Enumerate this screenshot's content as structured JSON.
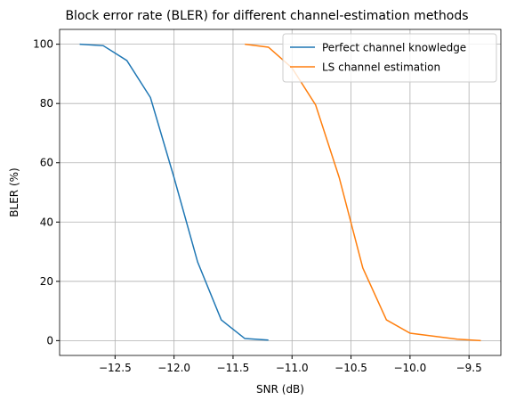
{
  "chart_data": {
    "type": "line",
    "title": "Block error rate (BLER) for different channel-estimation methods",
    "xlabel": "SNR (dB)",
    "ylabel": "BLER (%)",
    "series": [
      {
        "name": "Perfect channel knowledge",
        "color": "#1f77b4",
        "x": [
          -12.8,
          -12.6,
          -12.4,
          -12.2,
          -12.0,
          -11.8,
          -11.6,
          -11.4,
          -11.2
        ],
        "values": [
          100,
          99.5,
          94.5,
          82,
          55,
          26.5,
          7,
          0.7,
          0.2
        ]
      },
      {
        "name": "LS channel estimation",
        "color": "#ff7f0e",
        "x": [
          -11.4,
          -11.2,
          -11.0,
          -10.8,
          -10.6,
          -10.4,
          -10.2,
          -10.0,
          -9.8,
          -9.6,
          -9.4
        ],
        "values": [
          100,
          99,
          92,
          79.5,
          55,
          24.5,
          7,
          2.5,
          1.5,
          0.5,
          0
        ]
      }
    ],
    "xlim": [
      -12.97,
      -9.23
    ],
    "xticks": [
      {
        "value": -12.5,
        "label": "−12.5"
      },
      {
        "value": -12.0,
        "label": "−12.0"
      },
      {
        "value": -11.5,
        "label": "−11.5"
      },
      {
        "value": -11.0,
        "label": "−11.0"
      },
      {
        "value": -10.5,
        "label": "−10.5"
      },
      {
        "value": -10.0,
        "label": "−10.0"
      },
      {
        "value": -9.5,
        "label": "−9.5"
      }
    ],
    "ylim": [
      -5,
      105
    ],
    "yticks": [
      0,
      20,
      40,
      60,
      80,
      100
    ],
    "grid": true,
    "legend": "upper right"
  }
}
